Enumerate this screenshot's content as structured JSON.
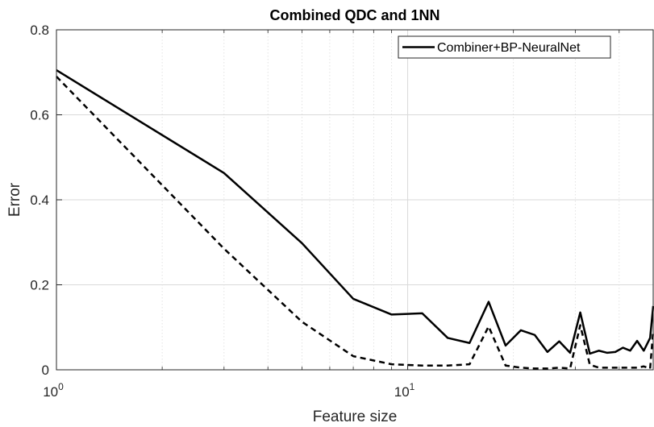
{
  "chart_data": {
    "type": "line",
    "title": "Combined QDC and 1NN",
    "xlabel": "Feature size",
    "ylabel": "Error",
    "xscale": "log",
    "xlim": [
      1,
      50
    ],
    "ylim": [
      0,
      0.8
    ],
    "yticks": [
      "0",
      "0.2",
      "0.4",
      "0.6",
      "0.8"
    ],
    "xticks": [
      {
        "value": 1,
        "base": "10",
        "exp": "0"
      },
      {
        "value": 10,
        "base": "10",
        "exp": "1"
      }
    ],
    "grid": true,
    "legend_position": "top-right",
    "series": [
      {
        "name": "Combiner+BP-NeuralNet",
        "line_style": "solid",
        "color": "#000000",
        "x": [
          1,
          3,
          5,
          7,
          9,
          11,
          13,
          15,
          17,
          19,
          21,
          23,
          25,
          27,
          29,
          31,
          33,
          35,
          37,
          39,
          41,
          43,
          45,
          47,
          49,
          50
        ],
        "y": [
          0.705,
          0.463,
          0.298,
          0.167,
          0.13,
          0.133,
          0.075,
          0.063,
          0.16,
          0.057,
          0.093,
          0.082,
          0.042,
          0.067,
          0.04,
          0.135,
          0.038,
          0.045,
          0.04,
          0.042,
          0.052,
          0.045,
          0.068,
          0.045,
          0.075,
          0.15
        ]
      },
      {
        "line_style": "dashed",
        "color": "#000000",
        "x": [
          1,
          3,
          5,
          7,
          9,
          11,
          13,
          15,
          17,
          19,
          21,
          23,
          25,
          27,
          29,
          31,
          33,
          35,
          37,
          39,
          41,
          43,
          45,
          47,
          49,
          50
        ],
        "y": [
          0.69,
          0.285,
          0.113,
          0.032,
          0.013,
          0.01,
          0.01,
          0.013,
          0.102,
          0.01,
          0.005,
          0.003,
          0.003,
          0.005,
          0.003,
          0.105,
          0.012,
          0.005,
          0.005,
          0.005,
          0.005,
          0.005,
          0.005,
          0.008,
          0.003,
          0.093
        ]
      }
    ]
  }
}
